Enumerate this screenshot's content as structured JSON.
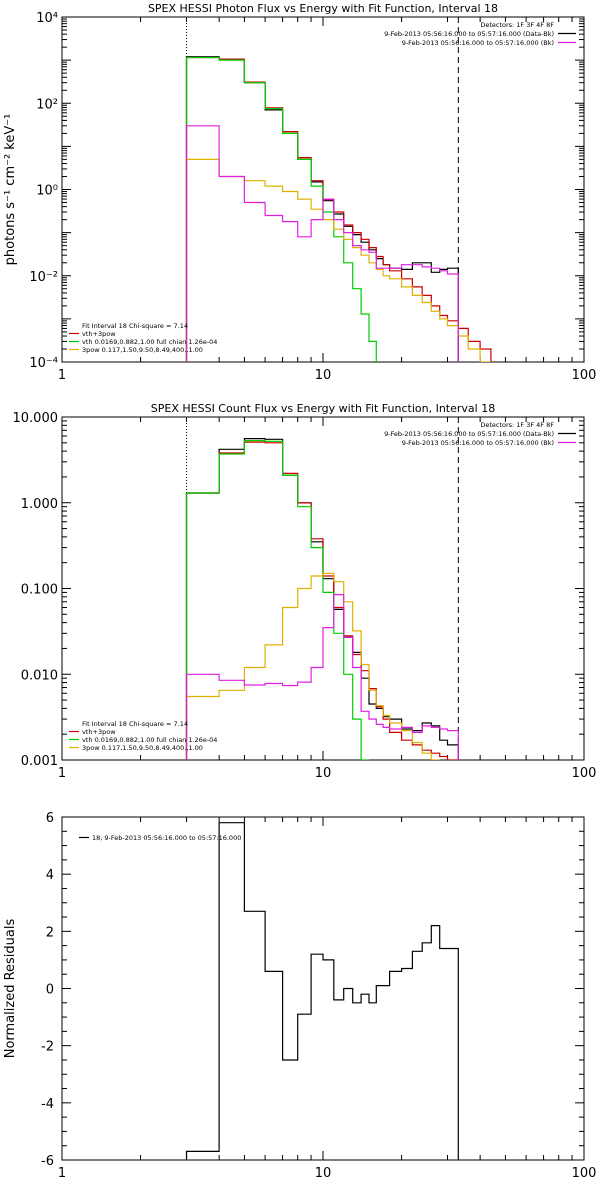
{
  "chart_data": [
    {
      "type": "line",
      "title": "SPEX HESSI Photon Flux vs Energy with Fit Function, Interval 18",
      "xlabel": "",
      "ylabel": "photons s⁻¹ cm⁻² keV⁻¹",
      "xscale": "log",
      "yscale": "log",
      "xlim": [
        1,
        100
      ],
      "ylim": [
        0.0001,
        10000
      ],
      "x_ticks": [
        "1",
        "10",
        "100"
      ],
      "y_ticks": [
        "10⁻⁴",
        "10⁻²",
        "10⁰",
        "10²",
        "10⁴"
      ],
      "legend_right": {
        "lines": [
          "Detectors: 1F 3F 4F 8F",
          "9-Feb-2013 05:56:16.000 to 05:57:16.000 (Data-Bk)",
          "9-Feb-2013 05:56:16.000 to 05:57:16.000 (Bk)"
        ],
        "colors": [
          "",
          "#000000",
          "#e020e0"
        ]
      },
      "legend_left": {
        "lines": [
          "Fit Interval 18   Chi-square = 7.14",
          "vth+3pow",
          "vth 0.0169,0.882,1.00  full chian 1.26e-04",
          "3pow 0.117,1.50,9.50,8.49,400.,1.00"
        ],
        "colors": [
          "",
          "#cc0000",
          "#00cc00",
          "#e0b000"
        ]
      },
      "energy_edges": [
        3,
        4,
        5,
        6,
        7,
        8,
        9,
        10,
        11,
        12,
        13,
        14,
        15,
        16,
        17,
        18,
        20,
        22,
        24,
        26,
        28,
        30,
        33,
        36,
        40,
        44
      ],
      "series": [
        {
          "color": "#000000",
          "values": [
            1200,
            1050,
            300,
            70,
            20,
            5,
            1.5,
            0.55,
            0.27,
            0.14,
            0.09,
            0.06,
            0.04,
            0.025,
            0.018,
            0.015,
            0.014,
            0.02,
            0.02,
            0.012,
            0.014,
            0.015,
            null,
            null,
            null
          ]
        },
        {
          "color": "#cc0000",
          "values": [
            1150,
            1050,
            310,
            78,
            22,
            5.5,
            1.6,
            0.58,
            0.3,
            0.15,
            0.1,
            0.07,
            0.045,
            0.028,
            0.018,
            0.013,
            0.0085,
            0.0055,
            0.0035,
            0.002,
            0.0012,
            0.0009,
            0.0006,
            0.0003,
            0.0002
          ]
        },
        {
          "color": "#00cc00",
          "values": [
            1150,
            1000,
            300,
            75,
            20,
            5,
            1.2,
            0.3,
            0.08,
            0.02,
            0.005,
            0.0013,
            0.0003,
            null,
            null,
            null,
            null,
            null,
            null,
            null,
            null,
            null,
            null,
            null,
            null
          ]
        },
        {
          "color": "#e0b000",
          "values": [
            5,
            2,
            1.6,
            1.2,
            0.9,
            0.6,
            0.35,
            0.2,
            0.12,
            0.07,
            0.045,
            0.03,
            0.02,
            0.014,
            0.01,
            0.0085,
            0.0055,
            0.0035,
            0.0024,
            0.0015,
            0.001,
            0.0007,
            0.0004,
            0.0002,
            0.0001
          ]
        },
        {
          "color": "#e020e0",
          "values": [
            30,
            2,
            0.5,
            0.25,
            0.18,
            0.08,
            0.2,
            0.6,
            0.2,
            0.1,
            0.05,
            0.04,
            0.035,
            0.015,
            0.015,
            0.015,
            0.018,
            0.018,
            0.016,
            0.015,
            0.013,
            0.011,
            null,
            null,
            null
          ]
        }
      ],
      "dotted_line_x": 3,
      "dashed_line_x": 33
    },
    {
      "type": "line",
      "title": "SPEX HESSI Count Flux vs Energy with Fit Function, Interval 18",
      "xlabel": "",
      "ylabel": "",
      "xscale": "log",
      "yscale": "log",
      "xlim": [
        1,
        100
      ],
      "ylim": [
        0.001,
        10
      ],
      "x_ticks": [
        "1",
        "10",
        "100"
      ],
      "y_ticks": [
        "0.001",
        "0.010",
        "0.100",
        "1.000",
        "10.000"
      ],
      "legend_right": {
        "lines": [
          "Detectors: 1F 3F 4F 8F",
          "9-Feb-2013 05:56:16.000 to 05:57:16.000 (Data-Bk)",
          "9-Feb-2013 05:56:16.000 to 05:57:16.000 (Bk)"
        ],
        "colors": [
          "",
          "#000000",
          "#e020e0"
        ]
      },
      "legend_left": {
        "lines": [
          "Fit Interval 18   Chi-square = 7.14",
          "vth+3pow",
          "vth 0.0169,0.882,1.00  full chian 1.26e-04",
          "3pow 0.117,1.50,9.50,8.49,400.,1.00"
        ],
        "colors": [
          "",
          "#cc0000",
          "#00cc00",
          "#e0b000"
        ]
      },
      "energy_edges": [
        3,
        4,
        5,
        6,
        7,
        8,
        9,
        10,
        11,
        12,
        13,
        14,
        15,
        16,
        17,
        18,
        20,
        22,
        24,
        26,
        28,
        30,
        33
      ],
      "series": [
        {
          "color": "#000000",
          "values": [
            1.3,
            4.2,
            5.6,
            5.5,
            2.1,
            1.0,
            0.35,
            0.13,
            0.057,
            0.027,
            0.018,
            0.009,
            0.0045,
            0.004,
            0.0032,
            0.003,
            0.0023,
            0.0022,
            0.0027,
            0.0025,
            0.0017,
            0.0015
          ]
        },
        {
          "color": "#cc0000",
          "values": [
            1.3,
            3.8,
            5.1,
            5.0,
            2.2,
            1.0,
            0.38,
            0.14,
            0.06,
            0.028,
            0.017,
            0.011,
            0.0068,
            0.0042,
            0.003,
            0.0021,
            0.0017,
            0.0015,
            0.0013,
            0.0012,
            0.0011,
            0.001
          ]
        },
        {
          "color": "#00cc00",
          "values": [
            1.3,
            3.7,
            5.3,
            5.2,
            2.1,
            0.9,
            0.3,
            0.09,
            0.03,
            0.01,
            0.003,
            0.001,
            null,
            null,
            null,
            null,
            null,
            null,
            null,
            null,
            null,
            null
          ]
        },
        {
          "color": "#e0b000",
          "values": [
            0.0055,
            0.0065,
            0.012,
            0.022,
            0.06,
            0.1,
            0.14,
            0.15,
            0.12,
            0.07,
            0.032,
            0.013,
            0.0065,
            0.0043,
            0.0033,
            0.0027,
            0.0022,
            0.0016,
            0.0012,
            0.001,
            null,
            null
          ]
        },
        {
          "color": "#e020e0",
          "values": [
            0.01,
            0.0085,
            0.0075,
            0.0078,
            0.0074,
            0.0081,
            0.012,
            0.035,
            0.085,
            0.027,
            0.012,
            0.0037,
            0.003,
            0.0026,
            0.0024,
            0.0023,
            0.0024,
            0.0021,
            0.0025,
            0.0024,
            0.0023,
            0.0022
          ]
        }
      ],
      "dotted_line_x": 3,
      "dashed_line_x": 33
    },
    {
      "type": "line",
      "title": "",
      "xlabel": "",
      "ylabel": "Normalized Residuals",
      "xscale": "log",
      "yscale": "linear",
      "xlim": [
        1,
        100
      ],
      "ylim": [
        -6,
        6
      ],
      "x_ticks": [
        "1",
        "10",
        "100"
      ],
      "y_ticks": [
        "-6",
        "-4",
        "-2",
        "0",
        "2",
        "4",
        "6"
      ],
      "legend_left": {
        "lines": [
          "18,  9-Feb-2013 05:56:16.000 to 05:57:16.000"
        ],
        "colors": [
          "#000000"
        ]
      },
      "energy_edges": [
        3,
        4,
        5,
        6,
        7,
        8,
        9,
        10,
        11,
        12,
        13,
        14,
        15,
        16,
        17,
        18,
        20,
        22,
        24,
        26,
        28,
        30,
        33
      ],
      "series": [
        {
          "color": "#000000",
          "values": [
            -5.7,
            5.8,
            2.7,
            0.6,
            -2.5,
            -0.9,
            1.2,
            1.0,
            -0.4,
            0.0,
            -0.5,
            -0.2,
            -0.5,
            0.1,
            0.1,
            0.6,
            0.7,
            1.3,
            1.6,
            2.2,
            1.4,
            1.4
          ]
        }
      ]
    }
  ]
}
